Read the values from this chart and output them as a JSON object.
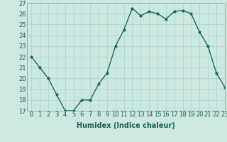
{
  "x": [
    0,
    1,
    2,
    3,
    4,
    5,
    6,
    7,
    8,
    9,
    10,
    11,
    12,
    13,
    14,
    15,
    16,
    17,
    18,
    19,
    20,
    21,
    22,
    23
  ],
  "y": [
    22,
    21,
    20,
    18.5,
    17,
    17,
    18,
    18,
    19.5,
    20.5,
    23,
    24.5,
    26.5,
    25.8,
    26.2,
    26,
    25.5,
    26.2,
    26.3,
    26,
    24.3,
    23,
    20.5,
    19.2
  ],
  "line_color": "#1a6b5a",
  "marker_color": "#1a6b5a",
  "bg_color": "#cce8e0",
  "grid_color": "#a8d5cc",
  "xlabel": "Humidex (Indice chaleur)",
  "ylim": [
    17,
    27
  ],
  "xlim": [
    -0.5,
    23
  ],
  "yticks": [
    17,
    18,
    19,
    20,
    21,
    22,
    23,
    24,
    25,
    26,
    27
  ],
  "xticks": [
    0,
    1,
    2,
    3,
    4,
    5,
    6,
    7,
    8,
    9,
    10,
    11,
    12,
    13,
    14,
    15,
    16,
    17,
    18,
    19,
    20,
    21,
    22,
    23
  ],
  "xlabel_fontsize": 7,
  "tick_fontsize": 6,
  "linewidth": 1.0,
  "markersize": 2.0
}
